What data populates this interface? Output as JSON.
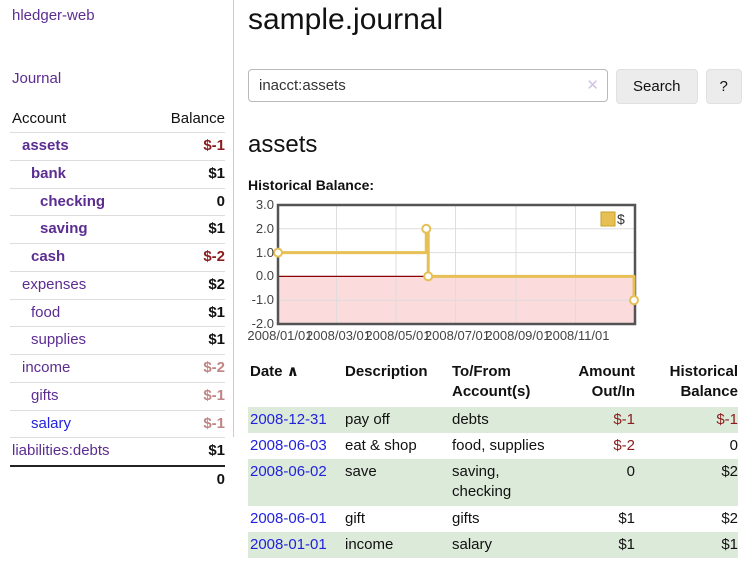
{
  "app": {
    "brand": "hledger-web",
    "nav_journal": "Journal"
  },
  "sidebar": {
    "headers": {
      "account": "Account",
      "balance": "Balance"
    },
    "accounts": [
      {
        "label": "assets",
        "balance": "$-1",
        "indent": 12,
        "link": "purple",
        "bold": true,
        "amount": "neg-strong"
      },
      {
        "label": "bank",
        "balance": "$1",
        "indent": 21,
        "link": "purple",
        "bold": true,
        "amount": "pos"
      },
      {
        "label": "checking",
        "balance": "0",
        "indent": 30,
        "link": "purple",
        "bold": true,
        "amount": "pos"
      },
      {
        "label": "saving",
        "balance": "$1",
        "indent": 30,
        "link": "purple",
        "bold": true,
        "amount": "pos"
      },
      {
        "label": "cash",
        "balance": "$-2",
        "indent": 21,
        "link": "purple",
        "bold": true,
        "amount": "neg-strong"
      },
      {
        "label": "expenses",
        "balance": "$2",
        "indent": 12,
        "link": "purple",
        "bold": false,
        "amount": "pos"
      },
      {
        "label": "food",
        "balance": "$1",
        "indent": 21,
        "link": "purple",
        "bold": false,
        "amount": "pos"
      },
      {
        "label": "supplies",
        "balance": "$1",
        "indent": 21,
        "link": "purple",
        "bold": false,
        "amount": "pos"
      },
      {
        "label": "income",
        "balance": "$-2",
        "indent": 12,
        "link": "purple",
        "bold": false,
        "amount": "neg-soft"
      },
      {
        "label": "gifts",
        "balance": "$-1",
        "indent": 21,
        "link": "purple",
        "bold": false,
        "amount": "neg-soft"
      },
      {
        "label": "salary",
        "balance": "$-1",
        "indent": 21,
        "link": "blue",
        "bold": false,
        "amount": "neg-soft"
      },
      {
        "label": "liabilities:debts",
        "balance": "$1",
        "indent": 2,
        "link": "purple",
        "bold": false,
        "amount": "pos"
      }
    ],
    "total": "0"
  },
  "main": {
    "title": "sample.journal",
    "search": {
      "value": "inacct:assets",
      "clear_icon": "✕",
      "button": "Search",
      "help_button": "?"
    },
    "account_heading": "assets",
    "chart_label": "Historical Balance:"
  },
  "chart_data": {
    "type": "line",
    "title": "Historical Balance",
    "xlim_days": [
      0,
      366
    ],
    "ylim": [
      -2,
      3
    ],
    "y_ticks": [
      {
        "value": 3,
        "label": "3.0"
      },
      {
        "value": 2,
        "label": "2.0"
      },
      {
        "value": 1,
        "label": "1.0"
      },
      {
        "value": 0,
        "label": "0.0"
      },
      {
        "value": -1,
        "label": "-1.0"
      },
      {
        "value": -2,
        "label": "-2.0"
      }
    ],
    "x_ticks": [
      {
        "day": 0,
        "label": "2008/01/01"
      },
      {
        "day": 60,
        "label": "2008/03/01"
      },
      {
        "day": 121,
        "label": "2008/05/01"
      },
      {
        "day": 182,
        "label": "2008/07/01"
      },
      {
        "day": 244,
        "label": "2008/09/01"
      },
      {
        "day": 305,
        "label": "2008/11/01"
      }
    ],
    "series": [
      {
        "name": "$",
        "render": "step-after",
        "points": [
          {
            "day": 0,
            "value": 1
          },
          {
            "day": 152,
            "value": 2
          },
          {
            "day": 154,
            "value": 0
          },
          {
            "day": 365,
            "value": -1
          }
        ],
        "dates": [
          "2008-01-01",
          "2008-06-01",
          "2008-06-03",
          "2008-12-31"
        ]
      }
    ],
    "legend": {
      "label": "$",
      "position": "top-right"
    },
    "grid": {
      "vertical": true,
      "horizontal": true
    },
    "styles": {
      "line_color": "#e6c054",
      "marker_fill": "#ffffff",
      "negative_fill": "#fbdbdb",
      "zero_line": "#8b0000",
      "gridline": "#dddddd",
      "border": "#545454",
      "tick_color": "#444444"
    }
  },
  "register": {
    "headers": {
      "date": "Date",
      "sort_icon": "∧",
      "description": "Description",
      "accounts": "To/From Account(s)",
      "amount": "Amount Out/In",
      "balance": "Historical Balance"
    },
    "rows": [
      {
        "date": "2008-12-31",
        "description": "pay off",
        "accounts": "debts",
        "amount": "$-1",
        "balance": "$-1",
        "amount_negative": true,
        "balance_negative": true,
        "shaded": true
      },
      {
        "date": "2008-06-03",
        "description": "eat & shop",
        "accounts": "food, supplies",
        "amount": "$-2",
        "balance": "0",
        "amount_negative": true,
        "balance_negative": false,
        "shaded": false
      },
      {
        "date": "2008-06-02",
        "description": "save",
        "accounts": "saving, checking",
        "amount": "0",
        "balance": "$2",
        "amount_negative": false,
        "balance_negative": false,
        "shaded": true
      },
      {
        "date": "2008-06-01",
        "description": "gift",
        "accounts": "gifts",
        "amount": "$1",
        "balance": "$2",
        "amount_negative": false,
        "balance_negative": false,
        "shaded": false
      },
      {
        "date": "2008-01-01",
        "description": "income",
        "accounts": "salary",
        "amount": "$1",
        "balance": "$1",
        "amount_negative": false,
        "balance_negative": false,
        "shaded": true
      }
    ]
  }
}
